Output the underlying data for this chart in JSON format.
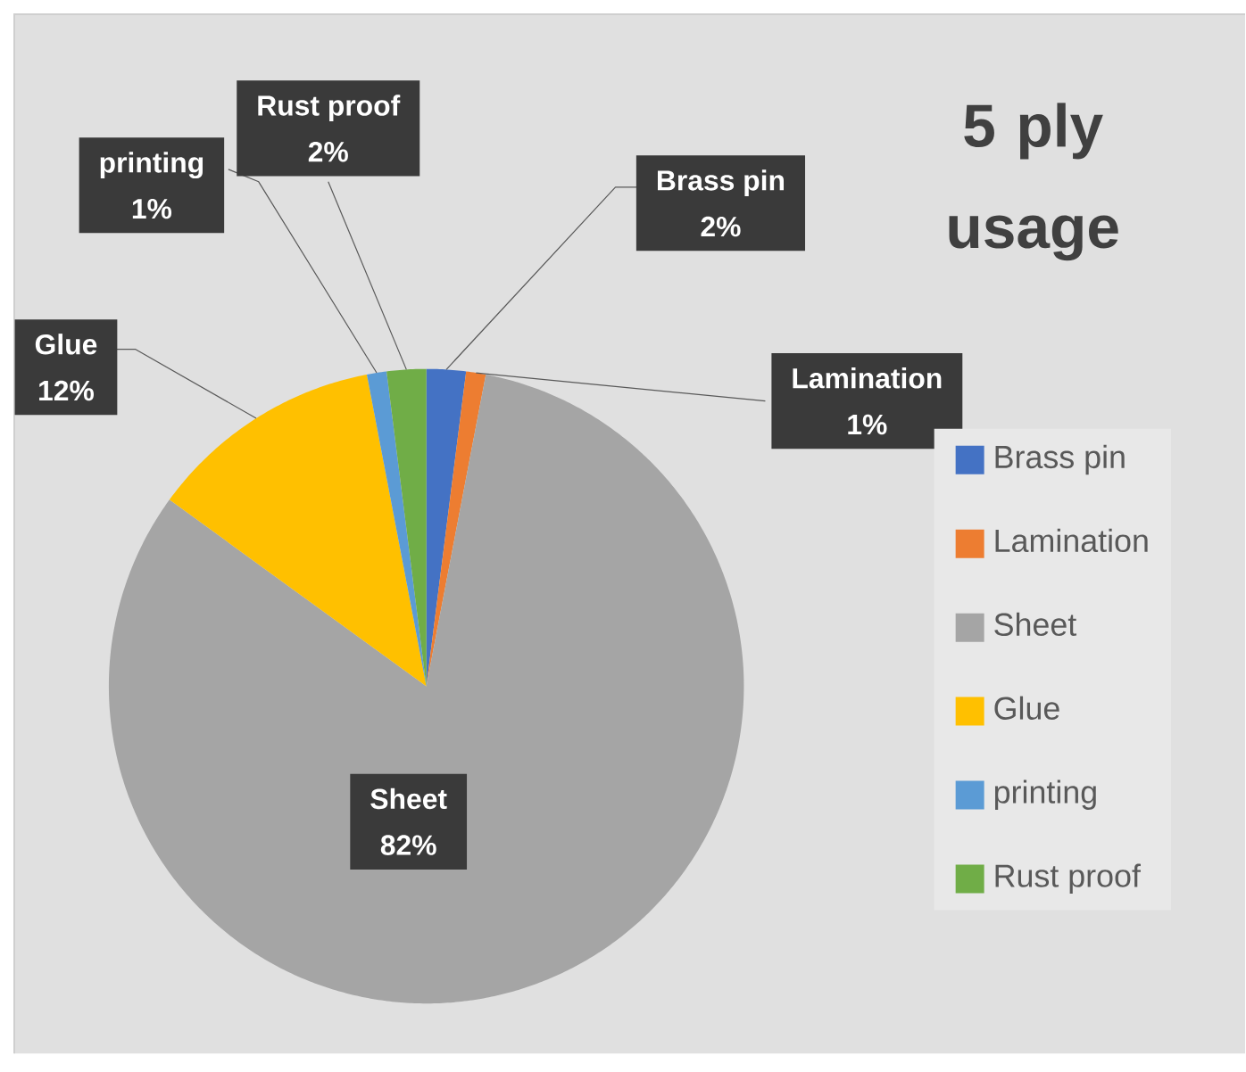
{
  "chart_data": {
    "type": "pie",
    "title": "5 ply usage",
    "categories": [
      "Brass pin",
      "Lamination",
      "Sheet",
      "Glue",
      "printing",
      "Rust proof"
    ],
    "values": [
      2,
      1,
      82,
      12,
      1,
      2
    ],
    "colors": [
      "#4472c4",
      "#ed7d31",
      "#a5a5a5",
      "#ffc000",
      "#5b9bd5",
      "#70ad47"
    ],
    "value_labels": [
      "2%",
      "1%",
      "82%",
      "12%",
      "1%",
      "2%"
    ],
    "legend": "right"
  }
}
